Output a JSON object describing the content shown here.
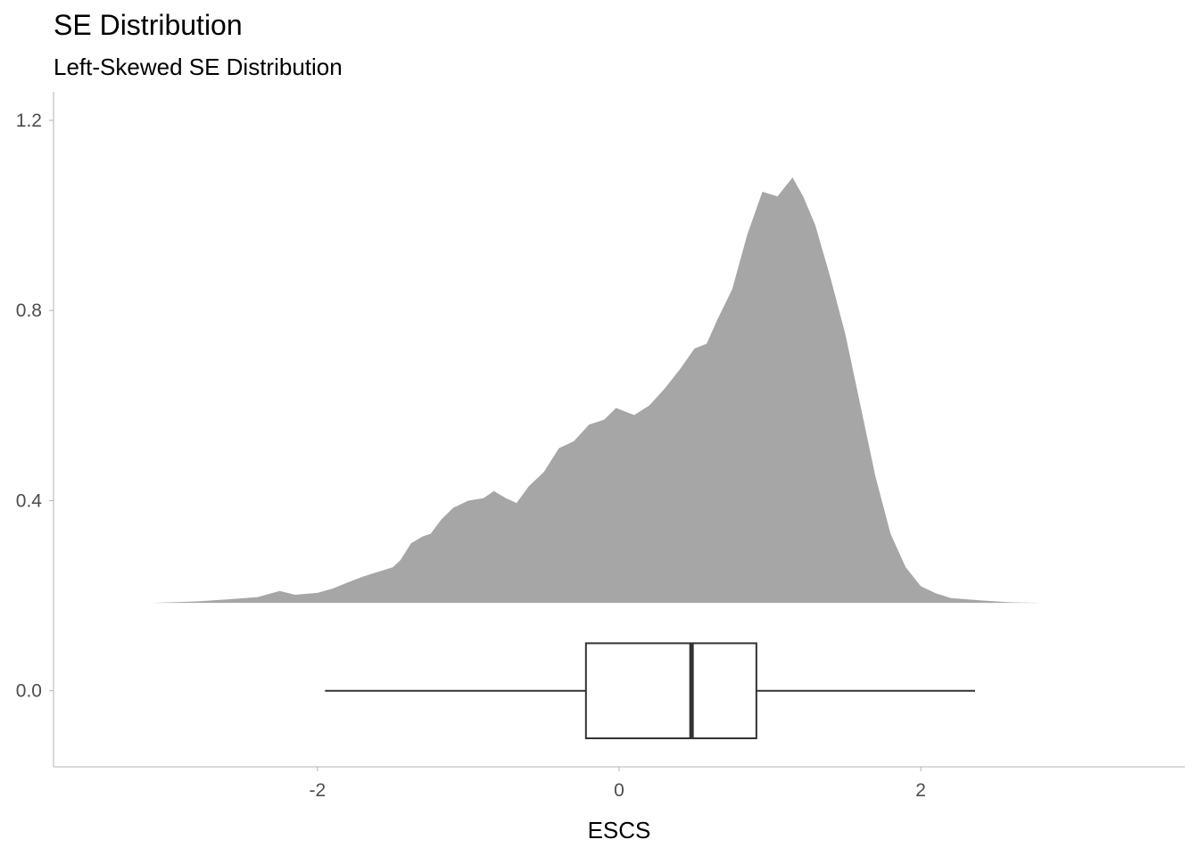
{
  "chart_data": {
    "type": "raincloud",
    "title": "SE Distribution",
    "subtitle": "Left-Skewed SE Distribution",
    "xlabel": "ESCS",
    "ylabel": "",
    "xlim": [
      -3.75,
      3.75
    ],
    "ylim": [
      -0.16,
      1.26
    ],
    "x_ticks": [
      -2,
      0,
      2
    ],
    "x_tick_labels": [
      "-2",
      "0",
      "2"
    ],
    "y_ticks": [
      0.0,
      0.4,
      0.8,
      1.2
    ],
    "y_tick_labels": [
      "0.0",
      "0.4",
      "0.8",
      "1.2"
    ],
    "grid": false,
    "density": {
      "baseline": 0.185,
      "fill_color": "#a6a6a6",
      "points": [
        [
          -3.1,
          0.185
        ],
        [
          -2.8,
          0.188
        ],
        [
          -2.6,
          0.192
        ],
        [
          -2.4,
          0.197
        ],
        [
          -2.25,
          0.21
        ],
        [
          -2.15,
          0.202
        ],
        [
          -2.0,
          0.206
        ],
        [
          -1.9,
          0.215
        ],
        [
          -1.8,
          0.228
        ],
        [
          -1.7,
          0.24
        ],
        [
          -1.6,
          0.25
        ],
        [
          -1.5,
          0.26
        ],
        [
          -1.45,
          0.275
        ],
        [
          -1.38,
          0.31
        ],
        [
          -1.3,
          0.325
        ],
        [
          -1.25,
          0.33
        ],
        [
          -1.18,
          0.36
        ],
        [
          -1.1,
          0.385
        ],
        [
          -1.0,
          0.4
        ],
        [
          -0.9,
          0.405
        ],
        [
          -0.83,
          0.42
        ],
        [
          -0.75,
          0.405
        ],
        [
          -0.68,
          0.395
        ],
        [
          -0.6,
          0.43
        ],
        [
          -0.5,
          0.46
        ],
        [
          -0.4,
          0.51
        ],
        [
          -0.3,
          0.525
        ],
        [
          -0.2,
          0.56
        ],
        [
          -0.1,
          0.57
        ],
        [
          -0.02,
          0.595
        ],
        [
          0.1,
          0.58
        ],
        [
          0.2,
          0.6
        ],
        [
          0.3,
          0.635
        ],
        [
          0.4,
          0.675
        ],
        [
          0.5,
          0.72
        ],
        [
          0.58,
          0.73
        ],
        [
          0.65,
          0.78
        ],
        [
          0.75,
          0.845
        ],
        [
          0.85,
          0.96
        ],
        [
          0.95,
          1.05
        ],
        [
          1.05,
          1.04
        ],
        [
          1.15,
          1.08
        ],
        [
          1.22,
          1.04
        ],
        [
          1.3,
          0.98
        ],
        [
          1.4,
          0.87
        ],
        [
          1.5,
          0.75
        ],
        [
          1.6,
          0.6
        ],
        [
          1.7,
          0.45
        ],
        [
          1.8,
          0.33
        ],
        [
          1.9,
          0.26
        ],
        [
          2.0,
          0.22
        ],
        [
          2.1,
          0.205
        ],
        [
          2.2,
          0.195
        ],
        [
          2.4,
          0.19
        ],
        [
          2.6,
          0.186
        ],
        [
          2.8,
          0.185
        ]
      ]
    },
    "boxplot": {
      "y": 0.0,
      "height": 0.2,
      "min": -1.95,
      "q1": -0.22,
      "median": 0.48,
      "q3": 0.91,
      "max": 2.36
    }
  }
}
